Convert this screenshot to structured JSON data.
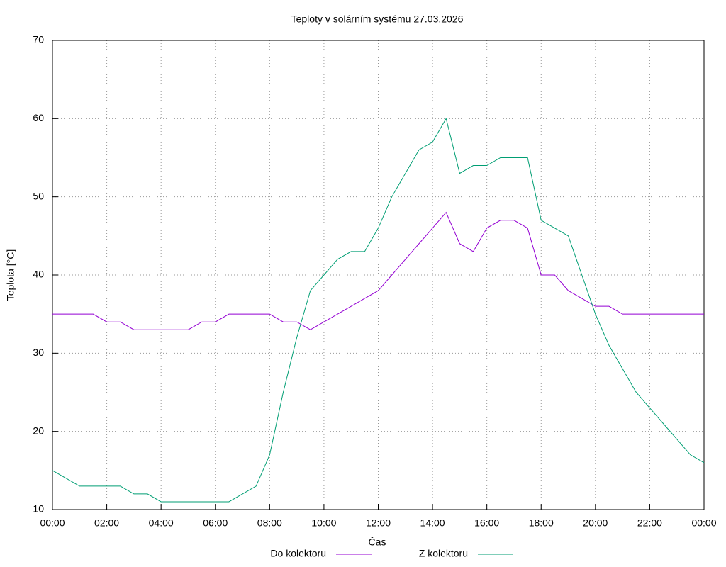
{
  "chart_data": {
    "type": "line",
    "title": "Teploty v solárním systému 27.03.2026",
    "xlabel": "Čas",
    "ylabel": "Teplota [°C]",
    "x": [
      0,
      0.5,
      1,
      1.5,
      2,
      2.5,
      3,
      3.5,
      4,
      4.5,
      5,
      5.5,
      6,
      6.5,
      7,
      7.5,
      8,
      8.5,
      9,
      9.5,
      10,
      10.5,
      11,
      11.5,
      12,
      12.5,
      13,
      13.5,
      14,
      14.5,
      15,
      15.5,
      16,
      16.5,
      17,
      17.5,
      18,
      18.5,
      19,
      19.5,
      20,
      20.5,
      21,
      21.5,
      22,
      22.5,
      23,
      23.5,
      24
    ],
    "series": [
      {
        "name": "Do kolektoru",
        "color": "#9400d3",
        "values": [
          35,
          35,
          35,
          35,
          34,
          34,
          33,
          33,
          33,
          33,
          33,
          34,
          34,
          35,
          35,
          35,
          35,
          34,
          34,
          33,
          34,
          35,
          36,
          37,
          38,
          40,
          42,
          44,
          46,
          48,
          44,
          43,
          46,
          47,
          47,
          46,
          40,
          40,
          38,
          37,
          36,
          36,
          35,
          35,
          35,
          35,
          35,
          35,
          35
        ]
      },
      {
        "name": "Z kolektoru",
        "color": "#009e73",
        "values": [
          15,
          14,
          13,
          13,
          13,
          13,
          12,
          12,
          11,
          11,
          11,
          11,
          11,
          11,
          12,
          13,
          17,
          25,
          32,
          38,
          40,
          42,
          43,
          43,
          46,
          50,
          53,
          56,
          57,
          60,
          53,
          54,
          54,
          55,
          55,
          55,
          47,
          46,
          45,
          40,
          35,
          31,
          28,
          25,
          23,
          21,
          19,
          17,
          16
        ]
      }
    ],
    "xlim": [
      0,
      24
    ],
    "xticks": [
      {
        "value": 0,
        "label": "00:00"
      },
      {
        "value": 2,
        "label": "02:00"
      },
      {
        "value": 4,
        "label": "04:00"
      },
      {
        "value": 6,
        "label": "06:00"
      },
      {
        "value": 8,
        "label": "08:00"
      },
      {
        "value": 10,
        "label": "10:00"
      },
      {
        "value": 12,
        "label": "12:00"
      },
      {
        "value": 14,
        "label": "14:00"
      },
      {
        "value": 16,
        "label": "16:00"
      },
      {
        "value": 18,
        "label": "18:00"
      },
      {
        "value": 20,
        "label": "20:00"
      },
      {
        "value": 22,
        "label": "22:00"
      },
      {
        "value": 24,
        "label": "00:00"
      }
    ],
    "ylim": [
      10,
      70
    ],
    "yticks": [
      10,
      20,
      30,
      40,
      50,
      60,
      70
    ],
    "grid": true,
    "legend": "bottom"
  }
}
